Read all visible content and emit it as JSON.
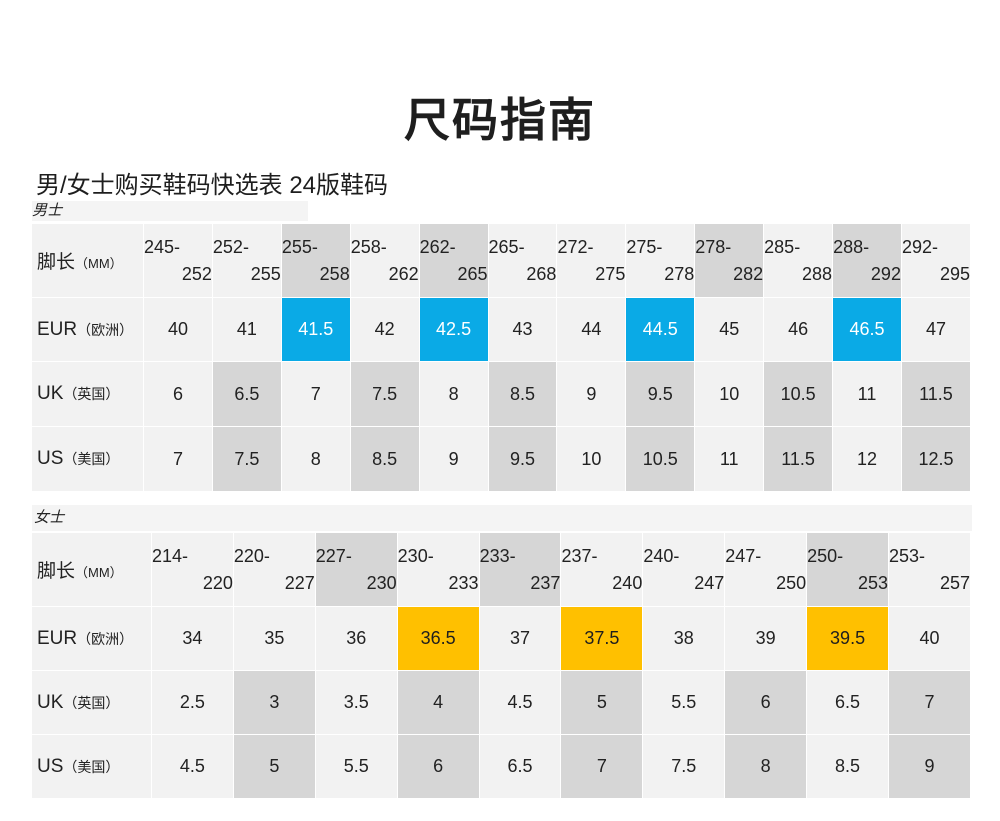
{
  "title": "尺码指南",
  "subtitle": "男/女士购买鞋码快选表 24版鞋码",
  "men": {
    "label": "男士",
    "row_labels": {
      "foot": {
        "main": "脚长",
        "unit": "（MM）"
      },
      "eur": {
        "main": "EUR",
        "unit": "（欧洲）"
      },
      "uk": {
        "main": "UK",
        "unit": "（英国）"
      },
      "us": {
        "main": "US",
        "unit": "（美国）"
      }
    },
    "ranges": [
      [
        "245-",
        "252"
      ],
      [
        "252-",
        "255"
      ],
      [
        "255-",
        "258"
      ],
      [
        "258-",
        "262"
      ],
      [
        "262-",
        "265"
      ],
      [
        "265-",
        "268"
      ],
      [
        "272-",
        "275"
      ],
      [
        "275-",
        "278"
      ],
      [
        "278-",
        "282"
      ],
      [
        "285-",
        "288"
      ],
      [
        "288-",
        "292"
      ],
      [
        "292-",
        "295"
      ]
    ],
    "eur": [
      "40",
      "41",
      "41.5",
      "42",
      "42.5",
      "43",
      "44",
      "44.5",
      "45",
      "46",
      "46.5",
      "47"
    ],
    "uk": [
      "6",
      "6.5",
      "7",
      "7.5",
      "8",
      "8.5",
      "9",
      "9.5",
      "10",
      "10.5",
      "11",
      "11.5"
    ],
    "us": [
      "7",
      "7.5",
      "8",
      "8.5",
      "9",
      "9.5",
      "10",
      "10.5",
      "11",
      "11.5",
      "12",
      "12.5"
    ],
    "highlight_color": "#0aaae6"
  },
  "women": {
    "label": "女士",
    "row_labels": {
      "foot": {
        "main": "脚长",
        "unit": "（MM）"
      },
      "eur": {
        "main": "EUR",
        "unit": "（欧洲）"
      },
      "uk": {
        "main": "UK",
        "unit": "（英国）"
      },
      "us": {
        "main": "US",
        "unit": "（美国）"
      }
    },
    "ranges": [
      [
        "214-",
        "220"
      ],
      [
        "220-",
        "227"
      ],
      [
        "227-",
        "230"
      ],
      [
        "230-",
        "233"
      ],
      [
        "233-",
        "237"
      ],
      [
        "237-",
        "240"
      ],
      [
        "240-",
        "247"
      ],
      [
        "247-",
        "250"
      ],
      [
        "250-",
        "253"
      ],
      [
        "253-",
        "257"
      ]
    ],
    "eur": [
      "34",
      "35",
      "36",
      "36.5",
      "37",
      "37.5",
      "38",
      "39",
      "39.5",
      "40"
    ],
    "uk": [
      "2.5",
      "3",
      "3.5",
      "4",
      "4.5",
      "5",
      "5.5",
      "6",
      "6.5",
      "7"
    ],
    "us": [
      "4.5",
      "5",
      "5.5",
      "6",
      "6.5",
      "7",
      "7.5",
      "8",
      "8.5",
      "9"
    ],
    "highlight_color": "#ffc000"
  }
}
